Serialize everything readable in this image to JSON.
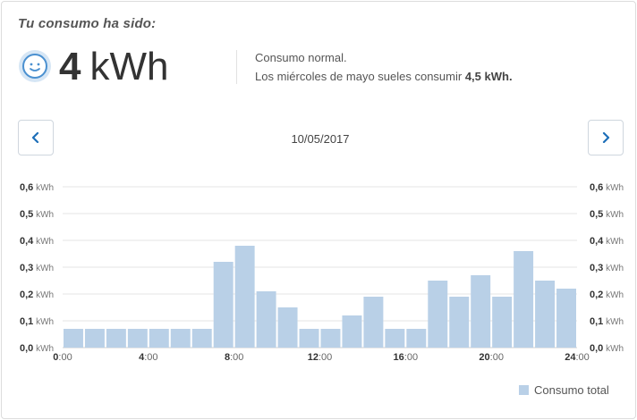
{
  "header": {
    "title": "Tu consumo ha sido:",
    "value": "4",
    "unit": "kWh",
    "status": "Consumo normal.",
    "comparison_text": "Los miércoles de mayo sueles consumir ",
    "comparison_value": "4,5 kWh."
  },
  "nav": {
    "date": "10/05/2017",
    "prev_icon": "chevron-left-icon",
    "next_icon": "chevron-right-icon"
  },
  "smiley_icon": "smiley-face-icon",
  "colors": {
    "bar": "#b9d0e7",
    "accent": "#1d6fb8",
    "grid": "#e6e6e6"
  },
  "chart_data": {
    "type": "bar",
    "title": "",
    "xlabel": "",
    "ylabel": "",
    "y_unit": "kWh",
    "ylim": [
      0,
      0.6
    ],
    "y_ticks": [
      "0,0",
      "0,1",
      "0,2",
      "0,3",
      "0,4",
      "0,5",
      "0,6"
    ],
    "x_tick_labels": [
      "0:00",
      "4:00",
      "8:00",
      "12:00",
      "16:00",
      "20:00",
      "24:00"
    ],
    "x_range": [
      0,
      24
    ],
    "grid": true,
    "legend_position": "bottom-right",
    "series": [
      {
        "name": "Consumo total",
        "hours": [
          0,
          1,
          2,
          3,
          4,
          5,
          6,
          7,
          8,
          9,
          10,
          11,
          12,
          13,
          14,
          15,
          16,
          17,
          18,
          19,
          20,
          21,
          22,
          23
        ],
        "values": [
          0.07,
          0.07,
          0.07,
          0.07,
          0.07,
          0.07,
          0.07,
          0.32,
          0.38,
          0.21,
          0.15,
          0.07,
          0.07,
          0.12,
          0.19,
          0.07,
          0.07,
          0.25,
          0.19,
          0.27,
          0.19,
          0.36,
          0.25,
          0.22
        ]
      }
    ]
  }
}
